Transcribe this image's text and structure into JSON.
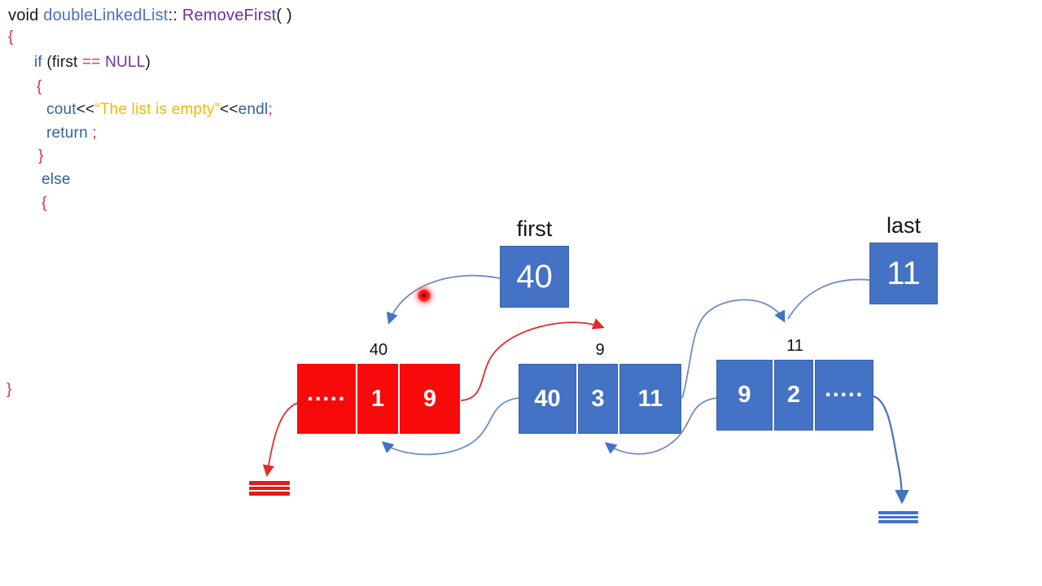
{
  "slide": {
    "topic": "doubleLinkedList RemoveFirst"
  },
  "colors": {
    "node_blue": "#4472c4",
    "node_red": "#f90a0a",
    "arrow_blue": "#5b7fc4",
    "arrow_red": "#e02b2b",
    "string_gold": "#f2b705",
    "keyword_blue": "#31639c",
    "identifier_purple": "#7030a0",
    "brace_red": "#e0313e"
  },
  "code": {
    "lines": [
      [
        {
          "t": "void ",
          "c": "b"
        },
        {
          "t": "doubleLinkedList",
          "c": "cls"
        },
        {
          "t": ":: ",
          "c": "b"
        },
        {
          "t": "RemoveFirst",
          "c": "p"
        },
        {
          "t": "( )",
          "c": "b"
        }
      ],
      [
        {
          "t": "{",
          "c": "r"
        }
      ],
      [
        {
          "t": "if ",
          "c": "k"
        },
        {
          "t": "(first ",
          "c": "b"
        },
        {
          "t": "== ",
          "c": "r"
        },
        {
          "t": "NULL",
          "c": "p"
        },
        {
          "t": ")",
          "c": "b"
        }
      ],
      [
        {
          "t": "{",
          "c": "r"
        }
      ],
      [
        {
          "t": "cout",
          "c": "k"
        },
        {
          "t": "<<",
          "c": "b"
        },
        {
          "t": "“The list is empty”",
          "c": "s"
        },
        {
          "t": "<<",
          "c": "b"
        },
        {
          "t": "endl",
          "c": "k"
        },
        {
          "t": ";",
          "c": "r"
        }
      ],
      [
        {
          "t": "return ",
          "c": "k"
        },
        {
          "t": ";",
          "c": "r"
        }
      ],
      [
        {
          "t": "}",
          "c": "r"
        }
      ],
      [
        {
          "t": "else",
          "c": "k"
        }
      ],
      [
        {
          "t": "{",
          "c": "r"
        }
      ],
      [
        {
          "t": "}",
          "c": "r"
        }
      ]
    ]
  },
  "diagram": {
    "first_pointer": {
      "label": "first",
      "value": "40"
    },
    "last_pointer": {
      "label": "last",
      "value": "11"
    },
    "nodes": [
      {
        "label": "40",
        "color": "red",
        "cells": [
          ".....",
          "1",
          "9"
        ]
      },
      {
        "label": "9",
        "color": "blue",
        "cells": [
          "40",
          "3",
          "11"
        ]
      },
      {
        "label": "11",
        "color": "blue",
        "cells": [
          "9",
          "2",
          "....."
        ]
      }
    ]
  }
}
